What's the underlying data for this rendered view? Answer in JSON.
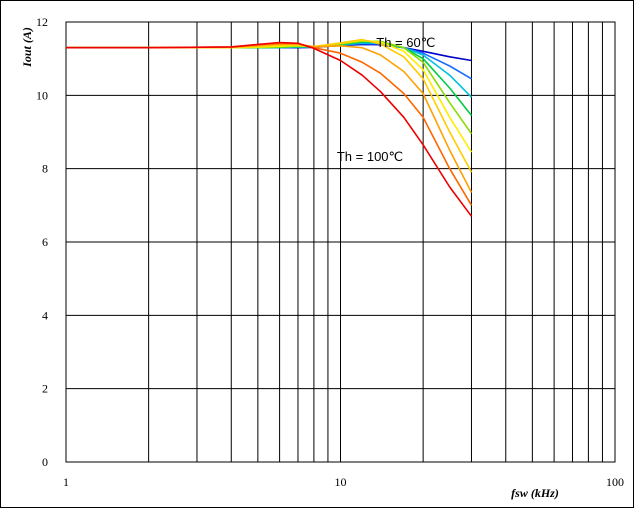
{
  "chart_data": {
    "type": "line",
    "xlabel": "fsw (kHz)",
    "ylabel": "Iout (A)",
    "xscale": "log",
    "xlim": [
      1,
      100
    ],
    "ylim": [
      0,
      12
    ],
    "x_ticks": [
      "1",
      "10",
      "100"
    ],
    "y_ticks": [
      "0",
      "2",
      "4",
      "6",
      "8",
      "10",
      "12"
    ],
    "grid": true,
    "legend": "none",
    "annotations": [
      {
        "text": "Th = 60℃",
        "x": 13.5,
        "y": 11.45
      },
      {
        "text": "Th = 100℃",
        "x": 9.7,
        "y": 8.35
      }
    ],
    "series": [
      {
        "color": "#0000cc",
        "x": [
          1,
          2,
          4,
          5,
          6,
          7,
          8,
          10,
          12,
          14,
          17,
          20,
          25,
          30
        ],
        "y": [
          11.3,
          11.3,
          11.3,
          11.3,
          11.3,
          11.3,
          11.31,
          11.36,
          11.39,
          11.38,
          11.3,
          11.2,
          11.05,
          10.95
        ]
      },
      {
        "color": "#1a6eff",
        "x": [
          1,
          2,
          4,
          5,
          6,
          7,
          8,
          10,
          12,
          14,
          17,
          20,
          25,
          30
        ],
        "y": [
          11.3,
          11.3,
          11.3,
          11.3,
          11.3,
          11.31,
          11.32,
          11.37,
          11.41,
          11.4,
          11.3,
          11.15,
          10.8,
          10.45
        ]
      },
      {
        "color": "#00c0e0",
        "x": [
          1,
          2,
          4,
          5,
          6,
          7,
          8,
          10,
          12,
          14,
          17,
          20,
          25,
          30
        ],
        "y": [
          11.3,
          11.3,
          11.3,
          11.3,
          11.31,
          11.32,
          11.32,
          11.38,
          11.43,
          11.42,
          11.3,
          11.1,
          10.55,
          9.95
        ]
      },
      {
        "color": "#00cc44",
        "x": [
          1,
          2,
          4,
          5,
          6,
          7,
          8,
          10,
          12,
          14,
          17,
          20,
          25,
          30
        ],
        "y": [
          11.3,
          11.3,
          11.3,
          11.3,
          11.31,
          11.33,
          11.32,
          11.39,
          11.46,
          11.45,
          11.3,
          11.0,
          10.2,
          9.45
        ]
      },
      {
        "color": "#88dd00",
        "x": [
          1,
          2,
          4,
          5,
          6,
          7,
          8,
          10,
          12,
          14,
          17,
          20,
          25,
          30
        ],
        "y": [
          11.3,
          11.3,
          11.3,
          11.31,
          11.32,
          11.34,
          11.33,
          11.4,
          11.48,
          11.47,
          11.3,
          10.9,
          9.8,
          8.95
        ]
      },
      {
        "color": "#ffee00",
        "x": [
          1,
          2,
          4,
          5,
          6,
          7,
          8,
          10,
          12,
          14,
          17,
          20,
          25,
          30
        ],
        "y": [
          11.3,
          11.3,
          11.3,
          11.32,
          11.34,
          11.36,
          11.33,
          11.42,
          11.5,
          11.45,
          11.2,
          10.7,
          9.4,
          8.45
        ]
      },
      {
        "color": "#ffcc00",
        "x": [
          1,
          2,
          4,
          5,
          6,
          7,
          8,
          10,
          12,
          14,
          17,
          20,
          25,
          30
        ],
        "y": [
          11.3,
          11.3,
          11.31,
          11.34,
          11.37,
          11.38,
          11.33,
          11.43,
          11.52,
          11.4,
          11.05,
          10.45,
          9.0,
          7.9
        ]
      },
      {
        "color": "#ffa000",
        "x": [
          1,
          2,
          4,
          5,
          6,
          7,
          8,
          10,
          12,
          14,
          17,
          20,
          25,
          30
        ],
        "y": [
          11.3,
          11.3,
          11.31,
          11.36,
          11.4,
          11.4,
          11.32,
          11.35,
          11.3,
          11.1,
          10.65,
          10.05,
          8.5,
          7.35
        ]
      },
      {
        "color": "#ff6600",
        "x": [
          1,
          2,
          4,
          5,
          6,
          7,
          8,
          10,
          12,
          14,
          17,
          20,
          25,
          30
        ],
        "y": [
          11.3,
          11.3,
          11.32,
          11.38,
          11.42,
          11.41,
          11.3,
          11.15,
          10.9,
          10.6,
          10.05,
          9.4,
          8.0,
          7.0
        ]
      },
      {
        "color": "#ee0000",
        "x": [
          1,
          2,
          4,
          5,
          6,
          7,
          8,
          10,
          12,
          14,
          17,
          20,
          25,
          30
        ],
        "y": [
          11.3,
          11.3,
          11.32,
          11.39,
          11.44,
          11.42,
          11.28,
          10.95,
          10.55,
          10.1,
          9.4,
          8.65,
          7.5,
          6.7
        ]
      }
    ]
  }
}
